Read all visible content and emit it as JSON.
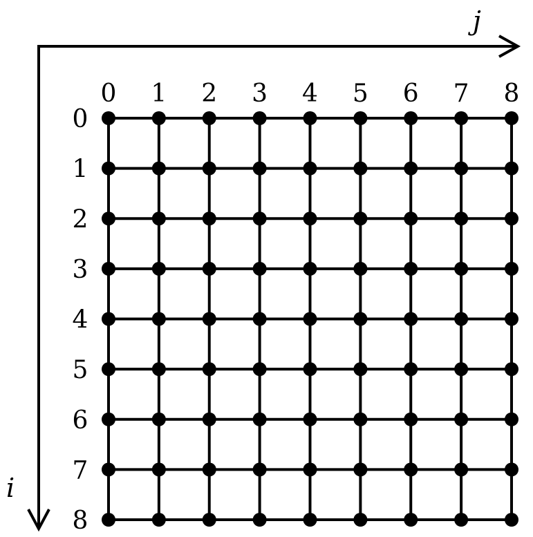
{
  "axes": {
    "i_label": "i",
    "j_label": "j"
  },
  "grid": {
    "rows": 9,
    "cols": 9,
    "row_labels": [
      "0",
      "1",
      "2",
      "3",
      "4",
      "5",
      "6",
      "7",
      "8"
    ],
    "col_labels": [
      "0",
      "1",
      "2",
      "3",
      "4",
      "5",
      "6",
      "7",
      "8"
    ]
  },
  "colors": {
    "ink": "#000000",
    "background": "#ffffff"
  }
}
